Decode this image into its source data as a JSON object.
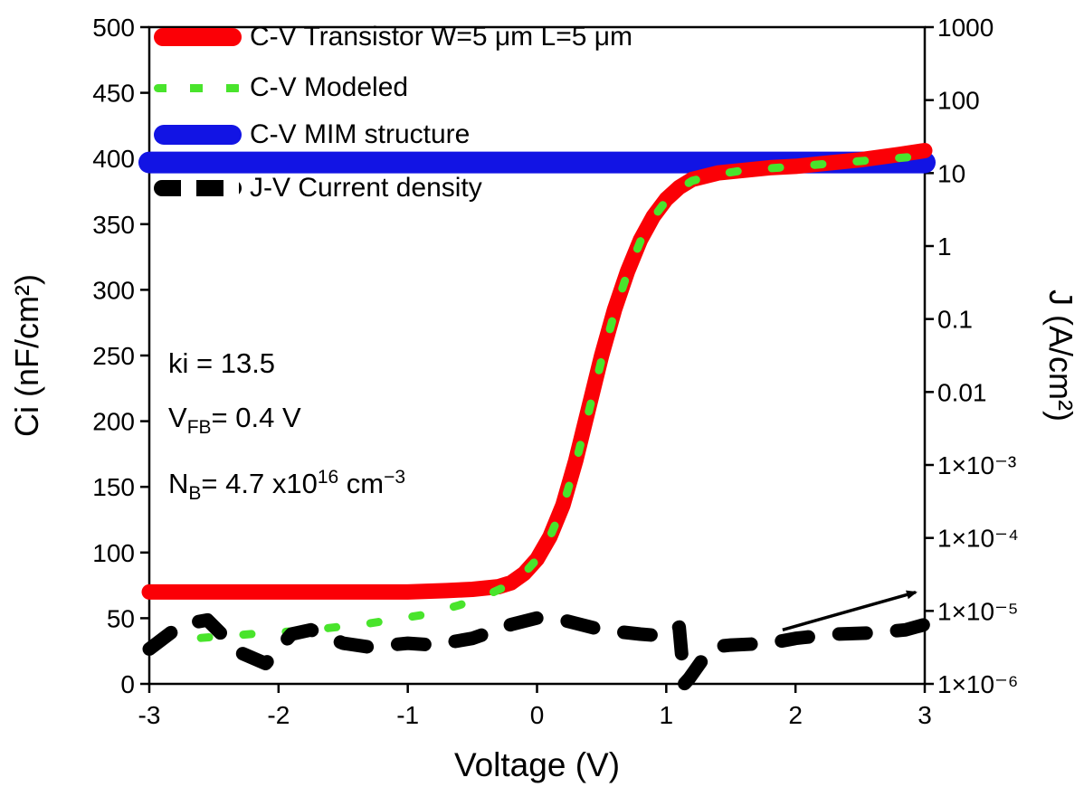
{
  "chart_data": {
    "type": "line",
    "title": "",
    "x_axis": {
      "label": "Voltage (V)",
      "min": -3,
      "max": 3,
      "ticks": [
        -3,
        -2,
        -1,
        0,
        1,
        2,
        3
      ]
    },
    "y_left": {
      "label": "Ci (nF/cm²)",
      "min": 0,
      "max": 500,
      "ticks": [
        0,
        50,
        100,
        150,
        200,
        250,
        300,
        350,
        400,
        450,
        500
      ]
    },
    "y_right": {
      "label": "J (A/cm²)",
      "scale": "log",
      "min": 1e-06,
      "max": 1000,
      "tick_values": [
        1000,
        100,
        10,
        1,
        0.1,
        0.01,
        0.001,
        0.0001,
        1e-05,
        1e-06
      ],
      "tick_labels": [
        "1000",
        "100",
        "10",
        "1",
        "0.1",
        "0.01",
        "1×10⁻³",
        "1×10⁻⁴",
        "1×10⁻⁵",
        "1×10⁻⁶"
      ]
    },
    "legend_position": "top-left-inside",
    "series": [
      {
        "name": "C-V Transistor W=5 μm L=5 μm",
        "axis": "left",
        "color": "#fb0006",
        "style": "solid",
        "width": 17,
        "x": [
          -3,
          -2.5,
          -2,
          -1.5,
          -1,
          -0.7,
          -0.5,
          -0.3,
          -0.2,
          -0.1,
          0,
          0.1,
          0.2,
          0.3,
          0.4,
          0.5,
          0.6,
          0.7,
          0.8,
          0.9,
          1,
          1.1,
          1.2,
          1.4,
          1.6,
          1.8,
          2,
          2.2,
          2.5,
          2.8,
          3
        ],
        "y": [
          70,
          70,
          70,
          70,
          70,
          71,
          72,
          74,
          77,
          84,
          95,
          112,
          136,
          170,
          210,
          250,
          285,
          314,
          338,
          356,
          369,
          378,
          384,
          389,
          391,
          393,
          394,
          396,
          399,
          403,
          406
        ]
      },
      {
        "name": "C-V Modeled",
        "axis": "left",
        "color": "#49e42c",
        "style": "dotted",
        "width": 9,
        "x": [
          -2.6,
          -2.2,
          -1.75,
          -1.3,
          -0.85,
          -0.6,
          -0.4,
          -0.2,
          -0.1,
          0,
          0.1,
          0.2,
          0.3,
          0.4,
          0.5,
          0.6,
          0.7,
          0.8,
          0.9,
          1,
          1.1,
          1.2,
          1.4,
          1.6,
          2,
          2.5,
          3
        ],
        "y": [
          35,
          38,
          41,
          46,
          53,
          60,
          67,
          76,
          84,
          95,
          112,
          135,
          168,
          207,
          247,
          283,
          313,
          337,
          355,
          368,
          377,
          383,
          388,
          391,
          394,
          398,
          402
        ]
      },
      {
        "name": "C-V MIM structure",
        "axis": "left",
        "color": "#1214e4",
        "style": "solid",
        "width": 24,
        "x": [
          -3,
          3
        ],
        "y": [
          397,
          397
        ]
      },
      {
        "name": "J-V Current density",
        "axis": "right",
        "color": "#000000",
        "style": "dashed",
        "width": 15,
        "x": [
          -3,
          -2.75,
          -2.55,
          -2.3,
          -2.1,
          -1.9,
          -1.75,
          -1.5,
          -1.3,
          -1,
          -0.8,
          -0.5,
          -0.2,
          0,
          0.2,
          0.5,
          0.8,
          1,
          1.1,
          1.14,
          1.18,
          1.35,
          1.5,
          1.8,
          2,
          2.3,
          2.6,
          2.85,
          3
        ],
        "y": [
          3e-06,
          6.5e-06,
          7.5e-06,
          2.7e-06,
          1.9e-06,
          4.8e-06,
          5.5e-06,
          3.6e-06,
          3.2e-06,
          3.6e-06,
          3.4e-06,
          4.2e-06,
          6.5e-06,
          8e-06,
          7.5e-06,
          5.5e-06,
          4.8e-06,
          4.5e-06,
          6e-06,
          1e-06,
          1.2e-06,
          3.2e-06,
          3.4e-06,
          3.6e-06,
          4.2e-06,
          4.8e-06,
          5e-06,
          5.5e-06,
          6.5e-06
        ]
      }
    ],
    "annotations": [
      {
        "id": "ki",
        "segments": [
          {
            "t": "ki = 13.5"
          }
        ]
      },
      {
        "id": "vfb",
        "segments": [
          {
            "t": "V"
          },
          {
            "t": "FB",
            "s": "sub"
          },
          {
            "t": "= 0.4 V"
          }
        ]
      },
      {
        "id": "nb",
        "segments": [
          {
            "t": "N"
          },
          {
            "t": "B",
            "s": "sub"
          },
          {
            "t": "= 4.7 x10"
          },
          {
            "t": "16",
            "s": "sup"
          },
          {
            "t": " cm"
          },
          {
            "t": "−3",
            "s": "sup"
          }
        ]
      }
    ],
    "arrow": {
      "x1": 1.9,
      "j1": 5.5e-06,
      "x2": 2.93,
      "j2": 1.8e-05
    }
  }
}
